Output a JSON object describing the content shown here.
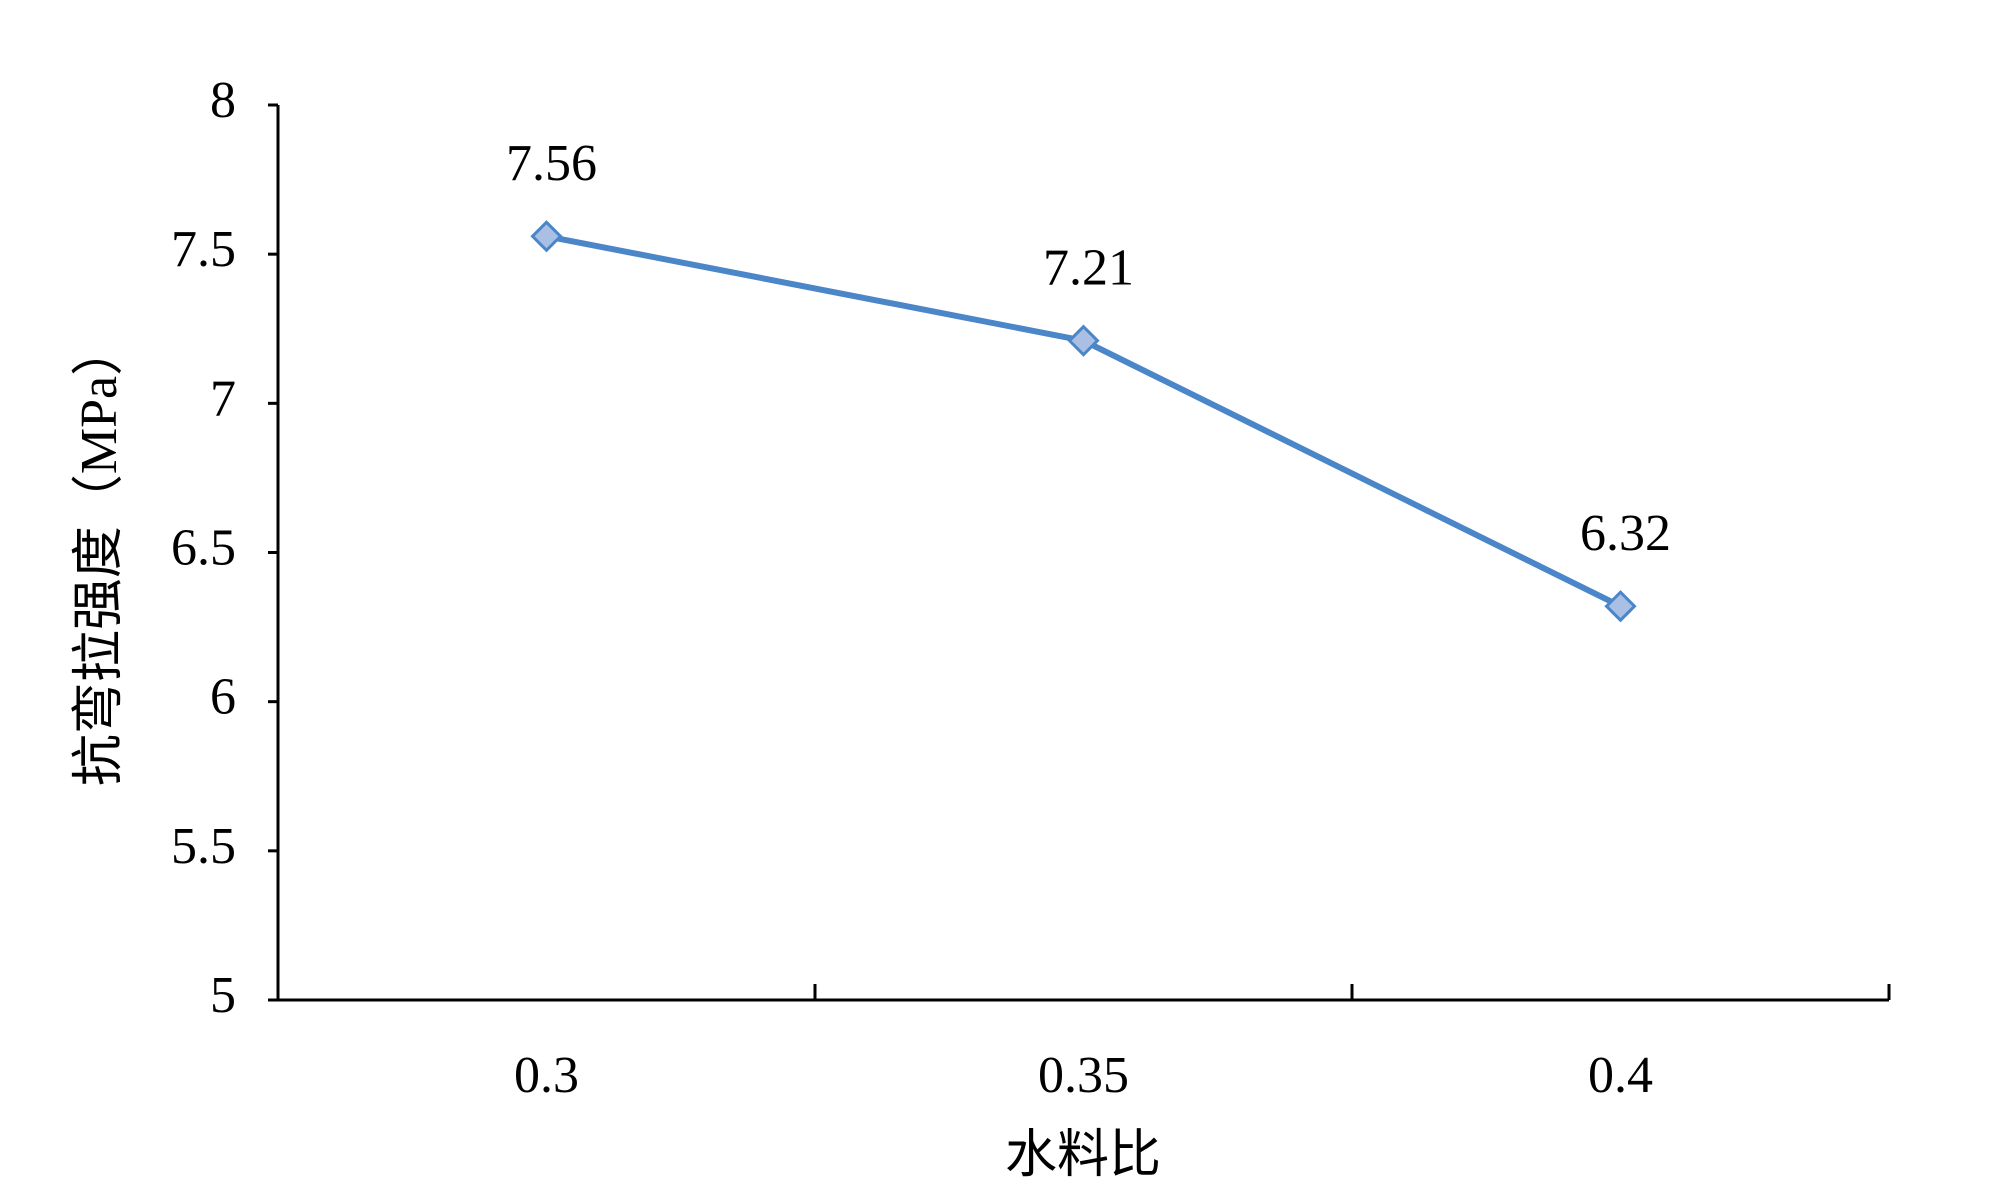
{
  "chart_data": {
    "type": "line",
    "x_label": "水料比",
    "y_label": "抗弯拉强度（MPa）",
    "categories": [
      "0.3",
      "0.35",
      "0.4"
    ],
    "values": [
      7.56,
      7.21,
      6.32
    ],
    "color": "#4a86c8",
    "marker_color": "#a9c0e4",
    "ylim": [
      5,
      8
    ],
    "yticks": [
      5,
      5.5,
      6,
      6.5,
      7,
      7.5,
      8
    ],
    "grid": false,
    "data_labels": true
  }
}
